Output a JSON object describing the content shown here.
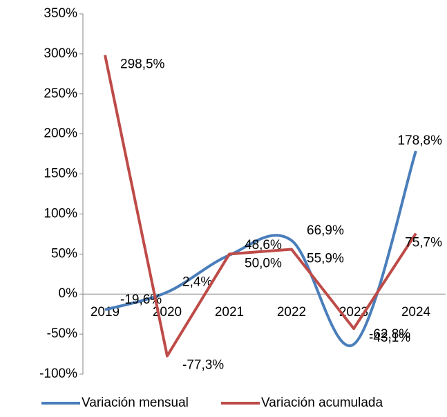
{
  "chart_data": {
    "type": "line",
    "categories": [
      "2019",
      "2020",
      "2021",
      "2022",
      "2023",
      "2024"
    ],
    "series": [
      {
        "name": "Variación mensual",
        "color": "#4a7ebb",
        "smooth": true,
        "values": [
          -19.6,
          2.4,
          48.6,
          66.9,
          -62.8,
          178.8
        ],
        "value_labels": [
          "-19,6%",
          "2,4%",
          "48,6%",
          "66,9%",
          "-62,8%",
          "178,8%"
        ]
      },
      {
        "name": "Variación acumulada",
        "color": "#be4b48",
        "smooth": false,
        "values": [
          298.5,
          -77.3,
          50.0,
          55.9,
          -43.1,
          75.7
        ],
        "value_labels": [
          "298,5%",
          "-77,3%",
          "50,0%",
          "55,9%",
          "-43,1%",
          "75,7%"
        ]
      }
    ],
    "ylim": [
      -100,
      350
    ],
    "yticks": [
      {
        "value": -100,
        "label": "-100%"
      },
      {
        "value": -50,
        "label": "-50%"
      },
      {
        "value": 0,
        "label": "0%"
      },
      {
        "value": 50,
        "label": "50%"
      },
      {
        "value": 100,
        "label": "100%"
      },
      {
        "value": 150,
        "label": "150%"
      },
      {
        "value": 200,
        "label": "200%"
      },
      {
        "value": 250,
        "label": "250%"
      },
      {
        "value": 300,
        "label": "300%"
      },
      {
        "value": 350,
        "label": "350%"
      }
    ],
    "grid": false,
    "legend": "bottom"
  }
}
